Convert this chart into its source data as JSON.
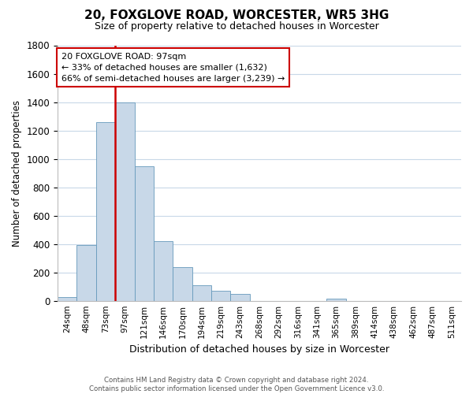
{
  "title": "20, FOXGLOVE ROAD, WORCESTER, WR5 3HG",
  "subtitle": "Size of property relative to detached houses in Worcester",
  "xlabel": "Distribution of detached houses by size in Worcester",
  "ylabel": "Number of detached properties",
  "bar_labels": [
    "24sqm",
    "48sqm",
    "73sqm",
    "97sqm",
    "121sqm",
    "146sqm",
    "170sqm",
    "194sqm",
    "219sqm",
    "243sqm",
    "268sqm",
    "292sqm",
    "316sqm",
    "341sqm",
    "365sqm",
    "389sqm",
    "414sqm",
    "438sqm",
    "462sqm",
    "487sqm",
    "511sqm"
  ],
  "bar_values": [
    25,
    390,
    1260,
    1400,
    950,
    420,
    235,
    110,
    70,
    50,
    0,
    0,
    0,
    0,
    15,
    0,
    0,
    0,
    0,
    0,
    0
  ],
  "bar_color": "#c8d8e8",
  "bar_edge_color": "#6699bb",
  "vline_color": "#cc0000",
  "vline_index": 3,
  "ylim": [
    0,
    1800
  ],
  "yticks": [
    0,
    200,
    400,
    600,
    800,
    1000,
    1200,
    1400,
    1600,
    1800
  ],
  "annotation_title": "20 FOXGLOVE ROAD: 97sqm",
  "annotation_line1": "← 33% of detached houses are smaller (1,632)",
  "annotation_line2": "66% of semi-detached houses are larger (3,239) →",
  "footer_line1": "Contains HM Land Registry data © Crown copyright and database right 2024.",
  "footer_line2": "Contains public sector information licensed under the Open Government Licence v3.0.",
  "background_color": "#ffffff",
  "grid_color": "#c8d8e8"
}
